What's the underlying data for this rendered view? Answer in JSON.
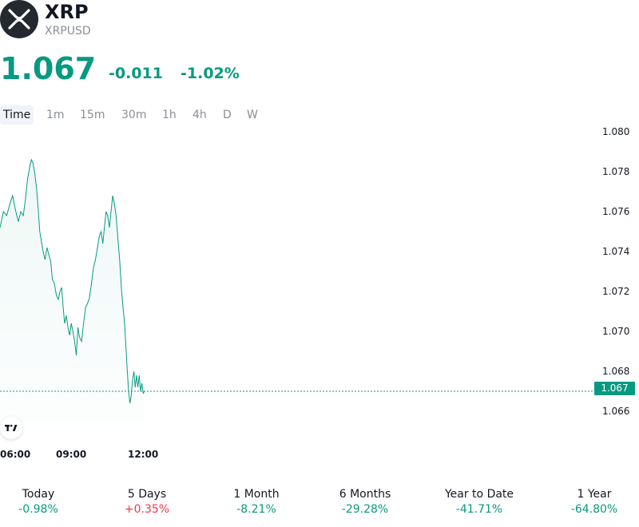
{
  "header": {
    "name": "XRP",
    "symbol": "XRPUSD",
    "price": "1.067",
    "change": "-0.011",
    "change_percent": "-1.02%",
    "accent_color": "#089981"
  },
  "timeframes": [
    "Time",
    "1m",
    "15m",
    "30m",
    "1h",
    "4h",
    "D",
    "W"
  ],
  "active_timeframe": "Time",
  "chart_data": {
    "type": "line",
    "x_ticks": [
      "06:00",
      "09:00",
      "12:00"
    ],
    "y_ticks": [
      "1.080",
      "1.078",
      "1.076",
      "1.074",
      "1.072",
      "1.070",
      "1.068",
      "1.066"
    ],
    "ylim": [
      1.0655,
      1.0805
    ],
    "current_price": 1.067,
    "current_price_label": "1.067",
    "line_color": "#089981",
    "points": [
      [
        0.0,
        1.0752
      ],
      [
        1.0,
        1.076
      ],
      [
        2.0,
        1.0758
      ],
      [
        3.0,
        1.0764
      ],
      [
        3.8,
        1.0768
      ],
      [
        4.5,
        1.0762
      ],
      [
        5.5,
        1.0755
      ],
      [
        6.3,
        1.076
      ],
      [
        7.0,
        1.0758
      ],
      [
        7.6,
        1.0765
      ],
      [
        8.3,
        1.0776
      ],
      [
        9.0,
        1.0783
      ],
      [
        9.5,
        1.0786
      ],
      [
        10.0,
        1.0784
      ],
      [
        10.5,
        1.0779
      ],
      [
        11.0,
        1.0772
      ],
      [
        11.5,
        1.0762
      ],
      [
        12.0,
        1.075
      ],
      [
        12.5,
        1.0745
      ],
      [
        13.0,
        1.074
      ],
      [
        13.6,
        1.0736
      ],
      [
        14.2,
        1.0742
      ],
      [
        14.8,
        1.0738
      ],
      [
        15.3,
        1.0735
      ],
      [
        15.8,
        1.0726
      ],
      [
        16.4,
        1.0724
      ],
      [
        17.0,
        1.0718
      ],
      [
        17.6,
        1.0716
      ],
      [
        18.1,
        1.072
      ],
      [
        18.6,
        1.0722
      ],
      [
        19.0,
        1.0713
      ],
      [
        19.5,
        1.0704
      ],
      [
        20.0,
        1.0708
      ],
      [
        20.5,
        1.0702
      ],
      [
        21.0,
        1.0698
      ],
      [
        21.5,
        1.0704
      ],
      [
        22.0,
        1.07
      ],
      [
        22.5,
        1.0695
      ],
      [
        23.0,
        1.0688
      ],
      [
        23.5,
        1.0702
      ],
      [
        24.0,
        1.0697
      ],
      [
        24.6,
        1.0695
      ],
      [
        25.2,
        1.0704
      ],
      [
        25.8,
        1.0712
      ],
      [
        26.4,
        1.0714
      ],
      [
        27.0,
        1.0717
      ],
      [
        27.6,
        1.0724
      ],
      [
        28.2,
        1.0732
      ],
      [
        28.8,
        1.0736
      ],
      [
        29.4,
        1.0742
      ],
      [
        30.0,
        1.0748
      ],
      [
        30.5,
        1.075
      ],
      [
        31.0,
        1.0744
      ],
      [
        31.5,
        1.0752
      ],
      [
        32.0,
        1.076
      ],
      [
        32.5,
        1.0758
      ],
      [
        33.0,
        1.0752
      ],
      [
        33.5,
        1.076
      ],
      [
        34.0,
        1.0768
      ],
      [
        34.5,
        1.0764
      ],
      [
        35.0,
        1.0758
      ],
      [
        35.6,
        1.0746
      ],
      [
        36.1,
        1.0736
      ],
      [
        36.6,
        1.0722
      ],
      [
        37.1,
        1.0712
      ],
      [
        37.6,
        1.0704
      ],
      [
        38.0,
        1.0692
      ],
      [
        38.4,
        1.068
      ],
      [
        38.8,
        1.067
      ],
      [
        39.2,
        1.0664
      ],
      [
        39.6,
        1.0668
      ],
      [
        40.0,
        1.0676
      ],
      [
        40.4,
        1.068
      ],
      [
        40.8,
        1.0672
      ],
      [
        41.2,
        1.0678
      ],
      [
        41.6,
        1.0672
      ],
      [
        42.0,
        1.0678
      ],
      [
        42.4,
        1.067
      ],
      [
        42.8,
        1.0674
      ],
      [
        43.2,
        1.0669
      ],
      [
        43.6,
        1.067
      ]
    ]
  },
  "performance": [
    {
      "label": "Today",
      "value": "-0.98%",
      "color": "#089981"
    },
    {
      "label": "5 Days",
      "value": "+0.35%",
      "color": "#f23645"
    },
    {
      "label": "1 Month",
      "value": "-8.21%",
      "color": "#089981"
    },
    {
      "label": "6 Months",
      "value": "-29.28%",
      "color": "#089981"
    },
    {
      "label": "Year to Date",
      "value": "-41.71%",
      "color": "#089981"
    },
    {
      "label": "1 Year",
      "value": "-64.80%",
      "color": "#089981"
    }
  ]
}
